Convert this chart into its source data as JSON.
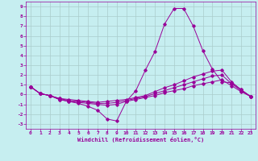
{
  "title": "",
  "xlabel": "Windchill (Refroidissement éolien,°C)",
  "bg_color": "#c6eef0",
  "line_color": "#990099",
  "grid_color": "#aacccc",
  "xlim": [
    -0.5,
    23.5
  ],
  "ylim": [
    -3.5,
    9.5
  ],
  "xticks": [
    0,
    1,
    2,
    3,
    4,
    5,
    6,
    7,
    8,
    9,
    10,
    11,
    12,
    13,
    14,
    15,
    16,
    17,
    18,
    19,
    20,
    21,
    22,
    23
  ],
  "yticks": [
    -3,
    -2,
    -1,
    0,
    1,
    2,
    3,
    4,
    5,
    6,
    7,
    8,
    9
  ],
  "lines": [
    {
      "x": [
        0,
        1,
        2,
        3,
        4,
        5,
        6,
        7,
        8,
        9,
        10,
        11,
        12,
        13,
        14,
        15,
        16,
        17,
        18,
        19,
        20,
        21,
        22,
        23
      ],
      "y": [
        0.8,
        0.1,
        -0.1,
        -0.5,
        -0.7,
        -0.9,
        -1.2,
        -1.6,
        -2.5,
        -2.7,
        -0.7,
        0.4,
        2.5,
        4.4,
        7.2,
        8.8,
        8.8,
        7.0,
        4.5,
        2.6,
        1.3,
        1.2,
        0.5,
        -0.2
      ]
    },
    {
      "x": [
        0,
        1,
        2,
        3,
        4,
        5,
        6,
        7,
        8,
        9,
        10,
        11,
        12,
        13,
        14,
        15,
        16,
        17,
        18,
        19,
        20,
        21,
        22,
        23
      ],
      "y": [
        0.8,
        0.1,
        -0.1,
        -0.4,
        -0.5,
        -0.6,
        -0.7,
        -0.8,
        -0.7,
        -0.6,
        -0.5,
        -0.3,
        -0.1,
        0.3,
        0.7,
        1.0,
        1.4,
        1.8,
        2.1,
        2.4,
        2.5,
        1.3,
        0.5,
        -0.2
      ]
    },
    {
      "x": [
        0,
        1,
        2,
        3,
        4,
        5,
        6,
        7,
        8,
        9,
        10,
        11,
        12,
        13,
        14,
        15,
        16,
        17,
        18,
        19,
        20,
        21,
        22,
        23
      ],
      "y": [
        0.8,
        0.1,
        -0.1,
        -0.4,
        -0.6,
        -0.7,
        -0.8,
        -0.9,
        -0.9,
        -0.8,
        -0.6,
        -0.4,
        -0.2,
        0.1,
        0.4,
        0.7,
        1.0,
        1.3,
        1.6,
        1.9,
        2.0,
        1.1,
        0.4,
        -0.2
      ]
    },
    {
      "x": [
        0,
        1,
        2,
        3,
        4,
        5,
        6,
        7,
        8,
        9,
        10,
        11,
        12,
        13,
        14,
        15,
        16,
        17,
        18,
        19,
        20,
        21,
        22,
        23
      ],
      "y": [
        0.8,
        0.1,
        -0.1,
        -0.5,
        -0.7,
        -0.8,
        -0.9,
        -1.0,
        -1.1,
        -1.0,
        -0.7,
        -0.5,
        -0.3,
        -0.1,
        0.2,
        0.4,
        0.6,
        0.9,
        1.1,
        1.3,
        1.5,
        0.9,
        0.3,
        -0.2
      ]
    }
  ]
}
